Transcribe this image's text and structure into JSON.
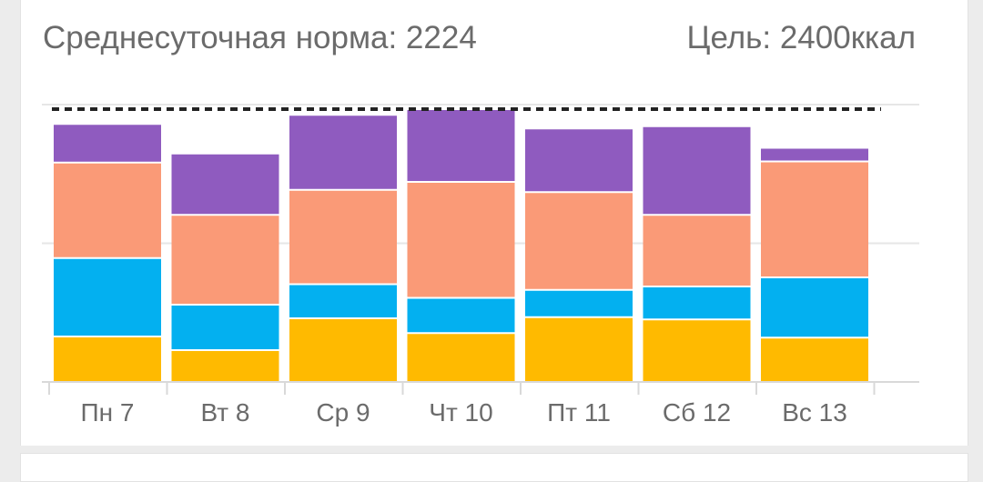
{
  "header": {
    "average_label": "Среднесуточная норма: 2224",
    "goal_label": "Цель: 2400ккал"
  },
  "colors": {
    "segment_bottom": "#FFBA00",
    "segment_2": "#03B0F0",
    "segment_3": "#FA9A77",
    "segment_top": "#8F5BBF",
    "goal_line": "#222222",
    "grid": "#e6e6e6",
    "axis": "#d9d9d9"
  },
  "chart_data": {
    "type": "bar",
    "stacked": true,
    "categories": [
      "Пн 7",
      "Вт 8",
      "Ср 9",
      "Чт 10",
      "Пт 11",
      "Сб 12",
      "Вс 13"
    ],
    "series": [
      {
        "values": [
          400,
          280,
          560,
          430,
          570,
          550,
          390
        ]
      },
      {
        "values": [
          690,
          400,
          300,
          310,
          240,
          290,
          530
        ]
      },
      {
        "values": [
          840,
          790,
          830,
          1020,
          860,
          630,
          1020
        ]
      },
      {
        "values": [
          340,
          540,
          660,
          640,
          560,
          780,
          120
        ]
      }
    ],
    "goal": 2400,
    "ylim": [
      0,
      2440
    ],
    "grid": true,
    "legend": "none"
  }
}
